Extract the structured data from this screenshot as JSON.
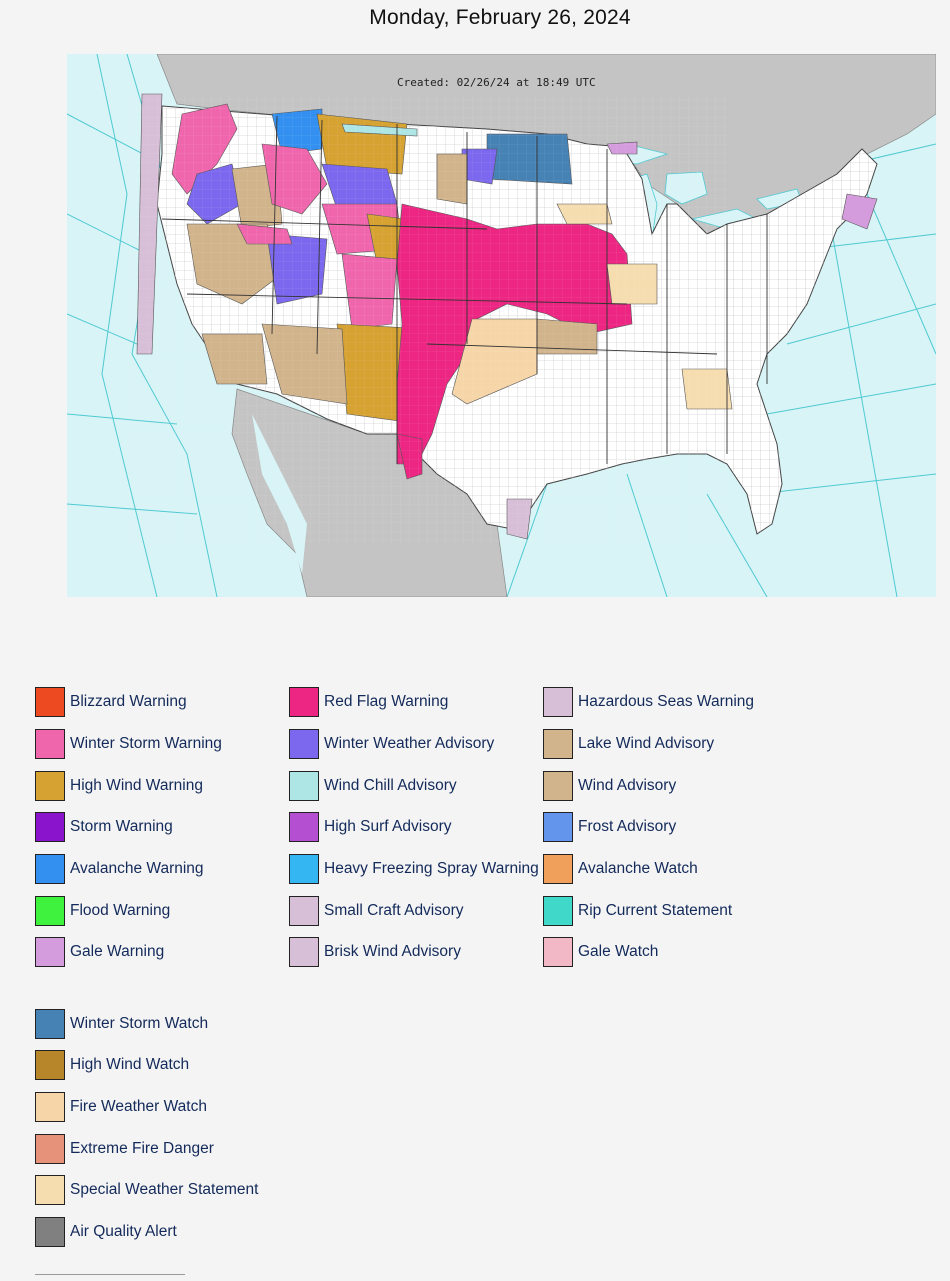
{
  "page": {
    "title": "Monday, February 26, 2024"
  },
  "map": {
    "created_text": "Created: 02/26/24 at 18:49 UTC",
    "colors": {
      "ocean": "#d8f4f6",
      "land_other": "#c4c4c4",
      "land_us": "#ffffff",
      "marine_lines": "#4fc9d2"
    }
  },
  "legend": {
    "columns": [
      [
        {
          "label": "Blizzard Warning",
          "color": "#ee4a22"
        },
        {
          "label": "Winter Storm Warning",
          "color": "#f066ad"
        },
        {
          "label": "High Wind Warning",
          "color": "#d6a232"
        },
        {
          "label": "Storm Warning",
          "color": "#8a13cc"
        },
        {
          "label": "Avalanche Warning",
          "color": "#3390f0"
        },
        {
          "label": "Flood Warning",
          "color": "#3ef23e"
        },
        {
          "label": "Gale Warning",
          "color": "#d49cdc"
        }
      ],
      [
        {
          "label": "Red Flag Warning",
          "color": "#ec2682"
        },
        {
          "label": "Winter Weather Advisory",
          "color": "#7b68ee"
        },
        {
          "label": "Wind Chill Advisory",
          "color": "#aee6e6"
        },
        {
          "label": "High Surf Advisory",
          "color": "#b34fd0"
        },
        {
          "label": "Heavy Freezing Spray Warning",
          "color": "#33b6f2"
        },
        {
          "label": "Small Craft Advisory",
          "color": "#d8bfd8"
        },
        {
          "label": "Brisk Wind Advisory",
          "color": "#d8bfd8"
        }
      ],
      [
        {
          "label": "Hazardous Seas Warning",
          "color": "#d8bfd8"
        },
        {
          "label": "Lake Wind Advisory",
          "color": "#d2b48c"
        },
        {
          "label": "Wind Advisory",
          "color": "#d2b48c"
        },
        {
          "label": "Frost Advisory",
          "color": "#6495ed"
        },
        {
          "label": "Avalanche Watch",
          "color": "#f0a05a"
        },
        {
          "label": "Rip Current Statement",
          "color": "#40d8c8"
        },
        {
          "label": "Gale Watch",
          "color": "#f3b8c6"
        }
      ]
    ],
    "watches": [
      {
        "label": "Winter Storm Watch",
        "color": "#4682b4"
      },
      {
        "label": "High Wind Watch",
        "color": "#b8862a"
      },
      {
        "label": "Fire Weather Watch",
        "color": "#f6d6a8"
      },
      {
        "label": "Extreme Fire Danger",
        "color": "#e6917a"
      },
      {
        "label": "Special Weather Statement",
        "color": "#f5ddb0"
      },
      {
        "label": "Air Quality Alert",
        "color": "#808080"
      }
    ]
  }
}
